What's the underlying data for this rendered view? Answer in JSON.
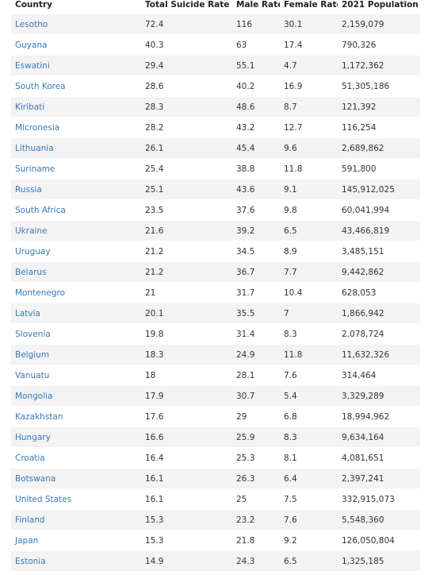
{
  "headers": {
    "country": "Country",
    "total": "Total Suicide Rate",
    "male": "Male Rate",
    "female": "Female Rate",
    "population": "2021 Population"
  },
  "sort": {
    "column": "total",
    "direction": "descending",
    "icon": "sort-down-icon"
  },
  "colors": {
    "link": "#3a78b5",
    "stripe": "#f3f3f3"
  },
  "rows": [
    {
      "country": "Lesotho",
      "total": "72.4",
      "male": "116",
      "female": "30.1",
      "population": "2,159,079"
    },
    {
      "country": "Guyana",
      "total": "40.3",
      "male": "63",
      "female": "17.4",
      "population": "790,326"
    },
    {
      "country": "Eswatini",
      "total": "29.4",
      "male": "55.1",
      "female": "4.7",
      "population": "1,172,362"
    },
    {
      "country": "South Korea",
      "total": "28.6",
      "male": "40.2",
      "female": "16.9",
      "population": "51,305,186"
    },
    {
      "country": "Kiribati",
      "total": "28.3",
      "male": "48.6",
      "female": "8.7",
      "population": "121,392"
    },
    {
      "country": "Micronesia",
      "total": "28.2",
      "male": "43.2",
      "female": "12.7",
      "population": "116,254"
    },
    {
      "country": "Lithuania",
      "total": "26.1",
      "male": "45.4",
      "female": "9.6",
      "population": "2,689,862"
    },
    {
      "country": "Suriname",
      "total": "25.4",
      "male": "38.8",
      "female": "11.8",
      "population": "591,800"
    },
    {
      "country": "Russia",
      "total": "25.1",
      "male": "43.6",
      "female": "9.1",
      "population": "145,912,025"
    },
    {
      "country": "South Africa",
      "total": "23.5",
      "male": "37.6",
      "female": "9.8",
      "population": "60,041,994"
    },
    {
      "country": "Ukraine",
      "total": "21.6",
      "male": "39.2",
      "female": "6.5",
      "population": "43,466,819"
    },
    {
      "country": "Uruguay",
      "total": "21.2",
      "male": "34.5",
      "female": "8.9",
      "population": "3,485,151"
    },
    {
      "country": "Belarus",
      "total": "21.2",
      "male": "36.7",
      "female": "7.7",
      "population": "9,442,862"
    },
    {
      "country": "Montenegro",
      "total": "21",
      "male": "31.7",
      "female": "10.4",
      "population": "628,053"
    },
    {
      "country": "Latvia",
      "total": "20.1",
      "male": "35.5",
      "female": "7",
      "population": "1,866,942"
    },
    {
      "country": "Slovenia",
      "total": "19.8",
      "male": "31.4",
      "female": "8.3",
      "population": "2,078,724"
    },
    {
      "country": "Belgium",
      "total": "18.3",
      "male": "24.9",
      "female": "11.8",
      "population": "11,632,326"
    },
    {
      "country": "Vanuatu",
      "total": "18",
      "male": "28.1",
      "female": "7.6",
      "population": "314,464"
    },
    {
      "country": "Mongolia",
      "total": "17.9",
      "male": "30.7",
      "female": "5.4",
      "population": "3,329,289"
    },
    {
      "country": "Kazakhstan",
      "total": "17.6",
      "male": "29",
      "female": "6.8",
      "population": "18,994,962"
    },
    {
      "country": "Hungary",
      "total": "16.6",
      "male": "25.9",
      "female": "8.3",
      "population": "9,634,164"
    },
    {
      "country": "Croatia",
      "total": "16.4",
      "male": "25.3",
      "female": "8.1",
      "population": "4,081,651"
    },
    {
      "country": "Botswana",
      "total": "16.1",
      "male": "26.3",
      "female": "6.4",
      "population": "2,397,241"
    },
    {
      "country": "United States",
      "total": "16.1",
      "male": "25",
      "female": "7.5",
      "population": "332,915,073"
    },
    {
      "country": "Finland",
      "total": "15.3",
      "male": "23.2",
      "female": "7.6",
      "population": "5,548,360"
    },
    {
      "country": "Japan",
      "total": "15.3",
      "male": "21.8",
      "female": "9.2",
      "population": "126,050,804"
    },
    {
      "country": "Estonia",
      "total": "14.9",
      "male": "24.3",
      "female": "6.5",
      "population": "1,325,185"
    }
  ]
}
